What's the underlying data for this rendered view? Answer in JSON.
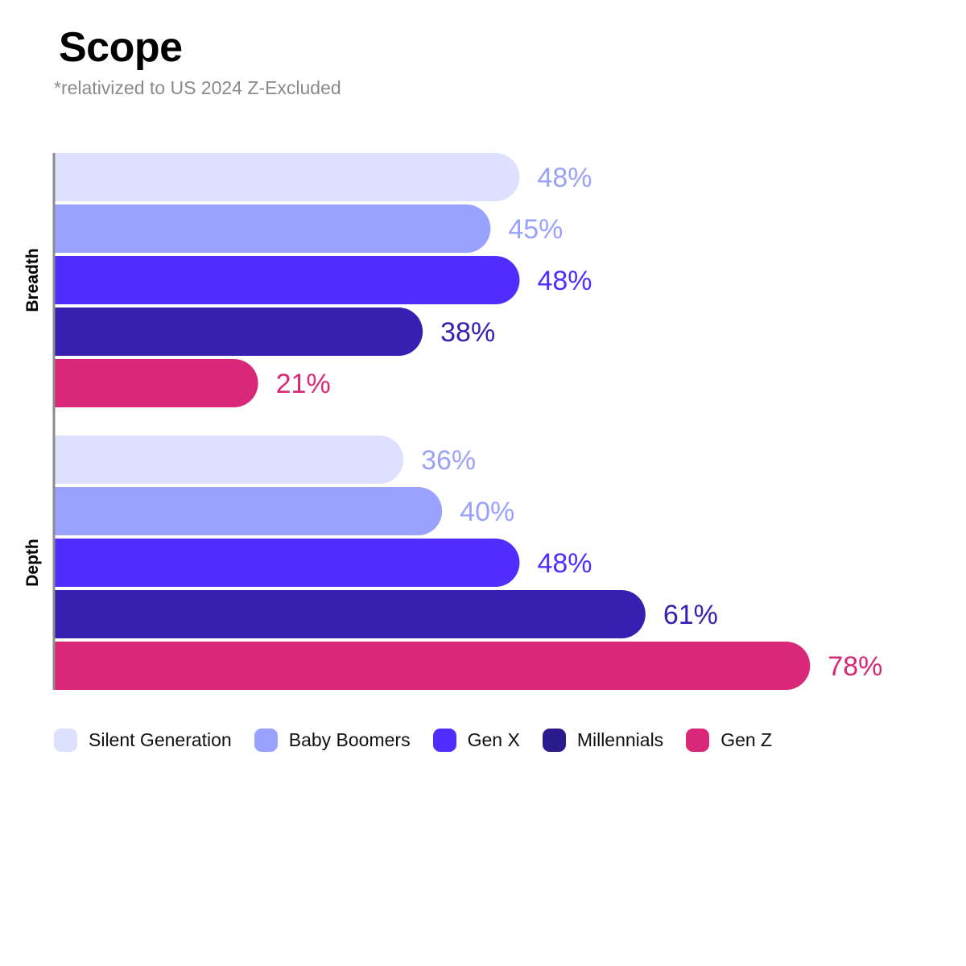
{
  "title": "Scope",
  "subtitle": "*relativized to US 2024 Z-Excluded",
  "chart_data": {
    "type": "bar",
    "orientation": "horizontal",
    "categories": [
      "Breadth",
      "Depth"
    ],
    "series": [
      {
        "name": "Silent Generation",
        "values": [
          48,
          36
        ],
        "labels": [
          "48%",
          "36%"
        ],
        "color": "#dde0fe",
        "label_color": "#9aa3f8"
      },
      {
        "name": "Baby Boomers",
        "values": [
          45,
          40
        ],
        "labels": [
          "45%",
          "40%"
        ],
        "color": "#99a2ff",
        "label_color": "#99a2ff"
      },
      {
        "name": "Gen X",
        "values": [
          48,
          48
        ],
        "labels": [
          "48%",
          "48%"
        ],
        "color": "#512eff",
        "label_color": "#512eff"
      },
      {
        "name": "Millennials",
        "values": [
          38,
          61
        ],
        "labels": [
          "38%",
          "61%"
        ],
        "color": "#371fb1",
        "label_color": "#371fb1"
      },
      {
        "name": "Gen Z",
        "values": [
          21,
          78
        ],
        "labels": [
          "21%",
          "78%"
        ],
        "color": "#da2878",
        "label_color": "#da2878"
      }
    ],
    "xlim": [
      0,
      78
    ],
    "grid": false,
    "legend": "bottom"
  },
  "legend": {
    "items": [
      {
        "label": "Silent Generation",
        "color": "#dde0fe"
      },
      {
        "label": "Baby Boomers",
        "color": "#99a2ff"
      },
      {
        "label": "Gen X",
        "color": "#512eff"
      },
      {
        "label": "Millennials",
        "color": "#2a1a8c"
      },
      {
        "label": "Gen Z",
        "color": "#da2878"
      }
    ]
  }
}
